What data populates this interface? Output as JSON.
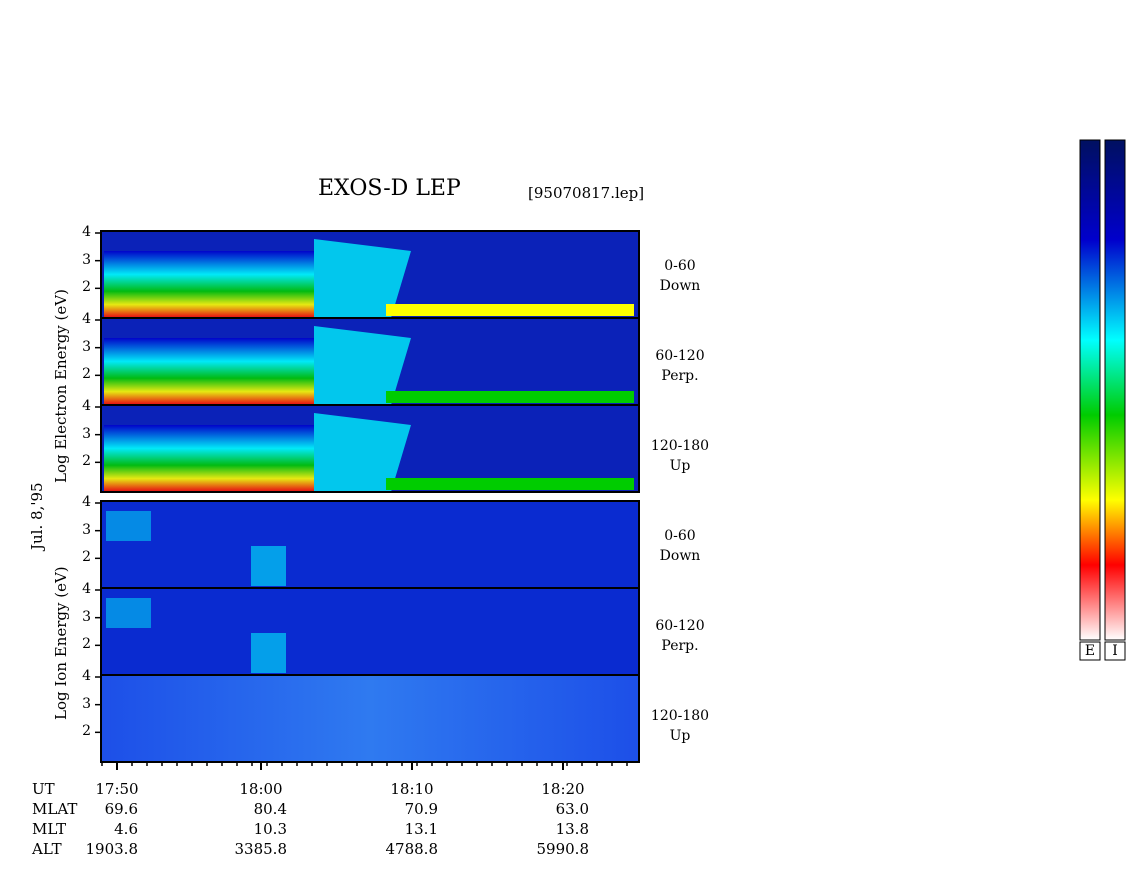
{
  "title": "EXOS-D LEP",
  "file_label": "[95070817.lep]",
  "date_label": "Jul. 8,'95",
  "y_axis_labels": {
    "electron": "Log  Electron  Energy (eV)",
    "ion": "Log  Ion  Energy (eV)"
  },
  "y_ticks": [
    "4",
    "3",
    "2"
  ],
  "panel_labels": [
    {
      "range": "0-60",
      "direction": "Down"
    },
    {
      "range": "60-120",
      "direction": "Perp."
    },
    {
      "range": "120-180",
      "direction": "Up"
    },
    {
      "range": "0-60",
      "direction": "Down"
    },
    {
      "range": "60-120",
      "direction": "Perp."
    },
    {
      "range": "120-180",
      "direction": "Up"
    }
  ],
  "x_ticks": [
    "17:50",
    "18:00",
    "18:10",
    "18:20"
  ],
  "ephemeris": [
    {
      "label": "UT",
      "values": [
        "",
        "",
        "",
        ""
      ]
    },
    {
      "label": "MLAT",
      "values": [
        "69.6",
        "80.4",
        "70.9",
        "63.0"
      ]
    },
    {
      "label": "MLT",
      "values": [
        "4.6",
        "10.3",
        "13.1",
        "13.8"
      ]
    },
    {
      "label": "ALT",
      "values": [
        "1903.8",
        "3385.8",
        "4788.8",
        "5990.8"
      ]
    }
  ],
  "colorbar_labels": [
    "E",
    "I"
  ],
  "chart_data": {
    "type": "heatmap",
    "panels": [
      {
        "species": "Electron",
        "pitch_angle": "0-60",
        "direction": "Down"
      },
      {
        "species": "Electron",
        "pitch_angle": "60-120",
        "direction": "Perp."
      },
      {
        "species": "Electron",
        "pitch_angle": "120-180",
        "direction": "Up"
      },
      {
        "species": "Ion",
        "pitch_angle": "0-60",
        "direction": "Down"
      },
      {
        "species": "Ion",
        "pitch_angle": "60-120",
        "direction": "Perp."
      },
      {
        "species": "Ion",
        "pitch_angle": "120-180",
        "direction": "Up"
      }
    ],
    "x_ticks": [
      "17:50",
      "18:00",
      "18:10",
      "18:20"
    ],
    "y_ticks": [
      4,
      3,
      2
    ],
    "ylim": [
      1,
      4
    ],
    "colormap": [
      "#ffffff",
      "#ff0000",
      "#ffff00",
      "#00cc00",
      "#00ffff",
      "#0000cc",
      "#001060"
    ]
  }
}
